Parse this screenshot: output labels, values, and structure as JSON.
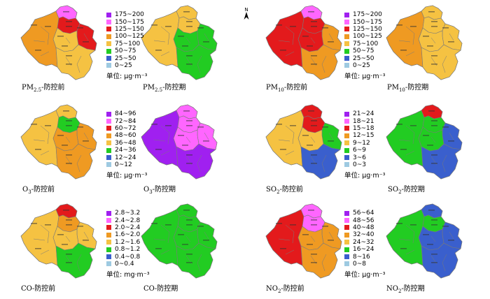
{
  "colors": {
    "c1": "#9ecae1",
    "c2": "#3a5fcd",
    "c3": "#22cc22",
    "c4": "#f5c242",
    "c5": "#ef9a22",
    "c6": "#e31a1c",
    "c7": "#ff66ff",
    "c8": "#a020f0",
    "border": "#7a7a7a"
  },
  "north_label": "N",
  "panels": [
    {
      "id": "pm25-before",
      "pollutant": "PM",
      "subscript": "2.5",
      "suffix": "-防控前",
      "base": "c5",
      "top": "c7",
      "north": "c6",
      "east": "c6",
      "center": "c4",
      "south": "c4",
      "west": "c5"
    },
    {
      "id": "pm25-during",
      "pollutant": "PM",
      "subscript": "2.5",
      "suffix": "-防控期",
      "base": "c4",
      "top": "c4",
      "north": "c4",
      "east": "c3",
      "center": "c3",
      "south": "c3",
      "west": "c4"
    },
    {
      "id": "pm10-before",
      "pollutant": "PM",
      "subscript": "10",
      "suffix": "-防控前",
      "base": "c6",
      "top": "c7",
      "north": "c6",
      "east": "c5",
      "center": "c6",
      "south": "c5",
      "west": "c6"
    },
    {
      "id": "pm10-during",
      "pollutant": "PM",
      "subscript": "10",
      "suffix": "-防控期",
      "base": "c4",
      "top": "c4",
      "north": "c4",
      "east": "c4",
      "center": "c4",
      "south": "c4",
      "west": "c5"
    },
    {
      "id": "o3-before",
      "pollutant": "O",
      "subscript": "3",
      "suffix": "-防控前",
      "base": "c5",
      "top": "c4",
      "north": "c3",
      "east": "c5",
      "center": "c5",
      "south": "c5",
      "west": "c4"
    },
    {
      "id": "o3-during",
      "pollutant": "O",
      "subscript": "3",
      "suffix": "-防控期",
      "base": "c7",
      "top": "c7",
      "north": "c7",
      "east": "c7",
      "center": "c7",
      "south": "c8",
      "west": "c8"
    },
    {
      "id": "so2-before",
      "pollutant": "SO",
      "subscript": "2",
      "suffix": "-防控前",
      "base": "c4",
      "top": "c6",
      "north": "c6",
      "east": "c3",
      "center": "c4",
      "south": "c2",
      "west": "c4"
    },
    {
      "id": "so2-during",
      "pollutant": "SO",
      "subscript": "2",
      "suffix": "-防控期",
      "base": "c3",
      "top": "c6",
      "north": "c3",
      "east": "c2",
      "center": "c3",
      "south": "c2",
      "west": "c3"
    },
    {
      "id": "co-before",
      "pollutant": "CO",
      "subscript": "",
      "suffix": "-防控前",
      "base": "c4",
      "top": "c6",
      "north": "c5",
      "east": "c4",
      "center": "c4",
      "south": "c3",
      "west": "c4"
    },
    {
      "id": "co-during",
      "pollutant": "CO",
      "subscript": "",
      "suffix": "-防控期",
      "base": "c3",
      "top": "c3",
      "north": "c3",
      "east": "c3",
      "center": "c3",
      "south": "c3",
      "west": "c3"
    },
    {
      "id": "no2-before",
      "pollutant": "NO",
      "subscript": "2",
      "suffix": "-防控前",
      "base": "c6",
      "top": "c7",
      "north": "c7",
      "east": "c5",
      "center": "c5",
      "south": "c5",
      "west": "c6"
    },
    {
      "id": "no2-during",
      "pollutant": "NO",
      "subscript": "2",
      "suffix": "-防控期",
      "base": "c3",
      "top": "c2",
      "north": "c3",
      "east": "c2",
      "center": "c2",
      "south": "c2",
      "west": "c3"
    }
  ],
  "legends": [
    {
      "id": "pm25",
      "items": [
        "175~200",
        "150~175",
        "125~150",
        "100~125",
        "75~100",
        "50~75",
        "25~50",
        "0~25"
      ],
      "unit": "单位: μg·m⁻³"
    },
    {
      "id": "pm10",
      "items": [
        "175~200",
        "150~175",
        "125~150",
        "100~125",
        "75~100",
        "50~75",
        "25~50",
        "0~25"
      ],
      "unit": "单位: μg·m⁻³"
    },
    {
      "id": "o3",
      "items": [
        "84~96",
        "72~84",
        "60~72",
        "48~60",
        "36~48",
        "24~36",
        "12~24",
        "0~12"
      ],
      "unit": "单位: μg·m⁻³"
    },
    {
      "id": "so2",
      "items": [
        "21~24",
        "18~21",
        "15~18",
        "12~15",
        "9~12",
        "6~9",
        "3~6",
        "0~3"
      ],
      "unit": "单位: μg·m⁻³"
    },
    {
      "id": "co",
      "items": [
        "2.8~3.2",
        "2.4~2.8",
        "2.0~2.4",
        "1.6~2.0",
        "1.2~1.6",
        "0.8~1.2",
        "0.4~0.8",
        "0~0.4"
      ],
      "unit": "单位: mg·m⁻³"
    },
    {
      "id": "no2",
      "items": [
        "56~64",
        "48~56",
        "40~48",
        "32~40",
        "24~32",
        "16~24",
        "8~16",
        "0~8"
      ],
      "unit": "单位: μg·m⁻³"
    }
  ],
  "legend_colors": [
    "c8",
    "c7",
    "c6",
    "c5",
    "c4",
    "c3",
    "c2",
    "c1"
  ]
}
